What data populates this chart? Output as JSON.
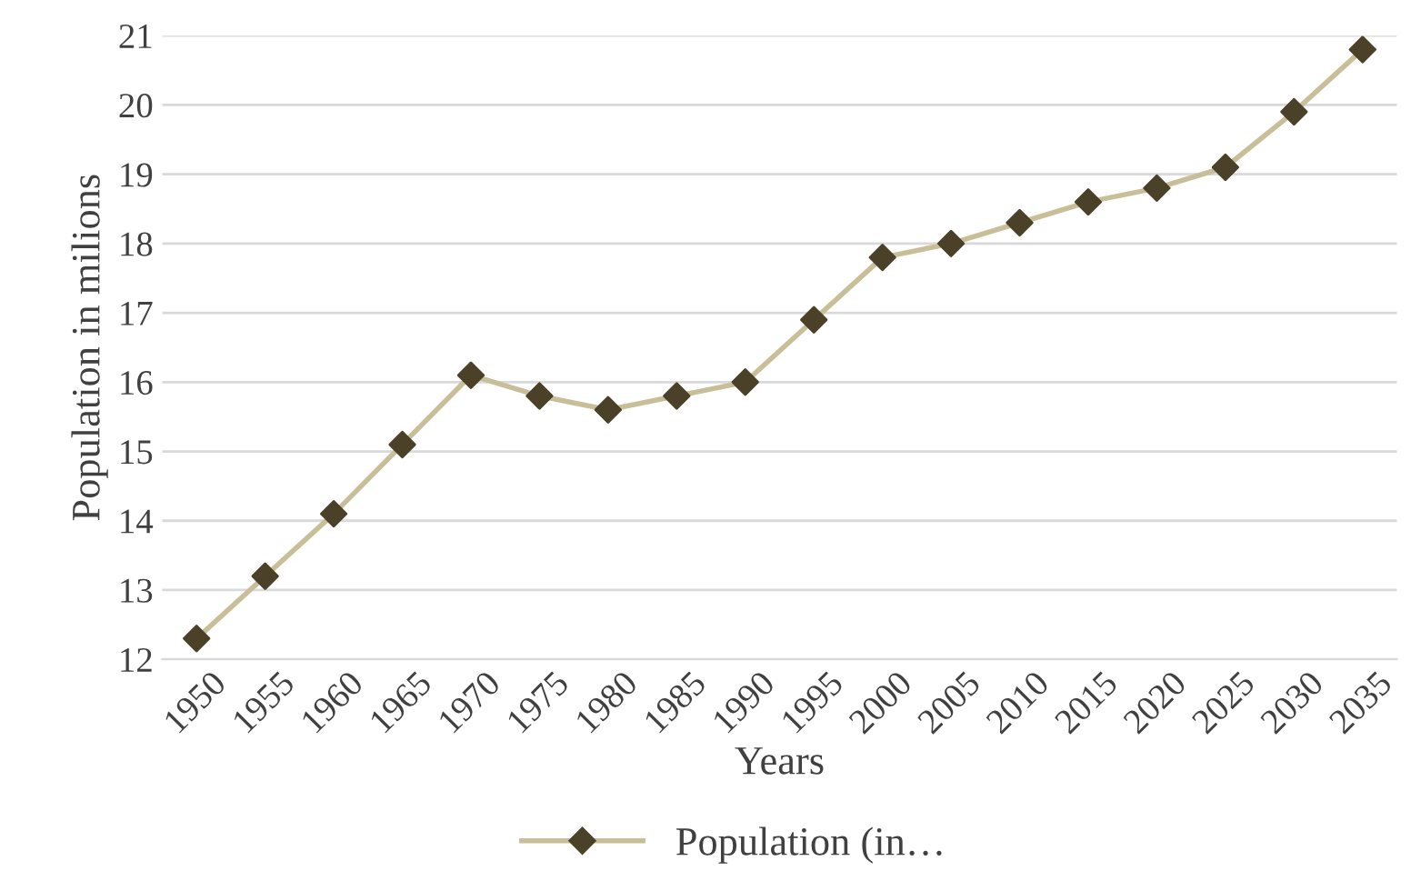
{
  "chart_data": {
    "type": "line",
    "xlabel": "Years",
    "ylabel": "Population in milions",
    "categories": [
      "1950",
      "1955",
      "1960",
      "1965",
      "1970",
      "1975",
      "1980",
      "1985",
      "1990",
      "1995",
      "2000",
      "2005",
      "2010",
      "2015",
      "2020",
      "2025",
      "2030",
      "2035"
    ],
    "series": [
      {
        "name": "Population (in…",
        "color": "#c8bf99",
        "colors": [
          "#4a4128",
          "#4a4128",
          "#4a4128",
          "#4a4128",
          "#4a4128",
          "#4a4128",
          "#4a4128",
          "#4a4128",
          "#4a4128",
          "#4a4128",
          "#4a4128",
          "#4a4128",
          "#4a4128",
          "#4a4128",
          "#4a4128",
          "#4a4128",
          "#4a4128",
          "#4a4128"
        ],
        "values": [
          12.3,
          13.2,
          14.1,
          15.1,
          16.1,
          15.8,
          15.6,
          15.8,
          16.0,
          16.9,
          17.8,
          18.0,
          18.3,
          18.6,
          18.8,
          19.1,
          19.9,
          20.8
        ]
      }
    ],
    "ylim": [
      12,
      21
    ],
    "yticks": [
      12,
      13,
      14,
      15,
      16,
      17,
      18,
      19,
      20,
      21
    ],
    "grid": "y",
    "legend": "bottom",
    "marker": "diamond",
    "line_style": "solid"
  }
}
